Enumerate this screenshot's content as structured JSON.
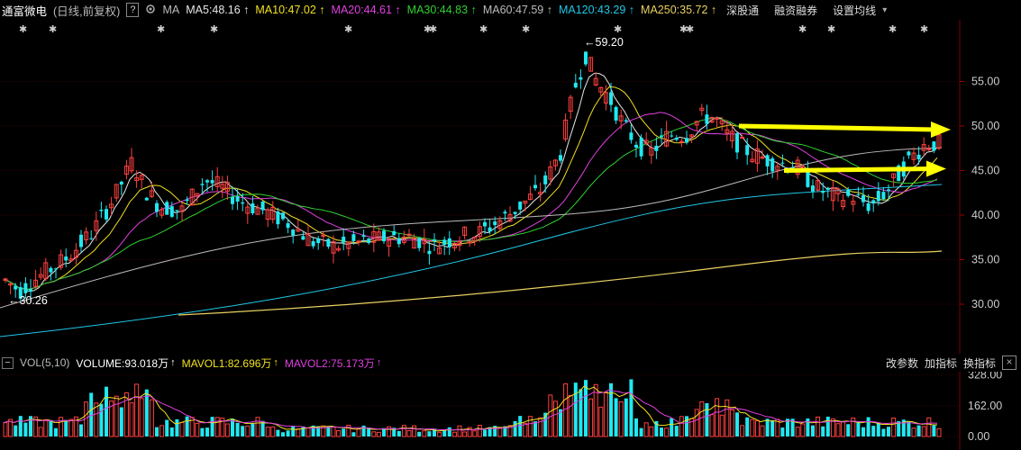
{
  "header": {
    "stock_name": "通富微电",
    "period_label": "(日线,前复权)",
    "help_glyph": "?",
    "ma_label": "MA",
    "ma_values": [
      {
        "label": "MA5:48.16",
        "color": "#e6e6e6"
      },
      {
        "label": "MA10:47.02",
        "color": "#f0e020"
      },
      {
        "label": "MA20:44.61",
        "color": "#e040e0"
      },
      {
        "label": "MA30:44.83",
        "color": "#30d030"
      },
      {
        "label": "MA60:47.59",
        "color": "#bbbbbb"
      },
      {
        "label": "MA120:43.29",
        "color": "#20c8e8"
      },
      {
        "label": "MA250:35.72",
        "color": "#e8d060"
      }
    ],
    "arrow_glyph": "↑",
    "buttons": {
      "sgt": "深股通",
      "rzrq": "融资融券",
      "set_ma": "设置均线"
    },
    "dropdown_glyph": "▾"
  },
  "price_axis": {
    "labels": [
      "55.00",
      "50.00",
      "45.00",
      "40.00",
      "35.00",
      "30.00"
    ],
    "high_label": "←59.20",
    "low_label": "←30.26"
  },
  "marker_glyph": "✱",
  "volume_header": {
    "minus_glyph": "−",
    "label": "VOL(5,10)",
    "volume": "VOLUME:93.018万",
    "mavol1": "MAVOL1:82.696万",
    "mavol2": "MAVOL2:75.173万",
    "arrow_glyph": "↑",
    "buttons": {
      "params": "改参数",
      "add": "加指标",
      "switch": "换指标"
    },
    "close_glyph": "×"
  },
  "volume_axis": {
    "labels": [
      "328.00",
      "162.00",
      "0.00"
    ]
  },
  "colors": {
    "up": "#ff4040",
    "down": "#20e8f0",
    "arrow": "#ffff00",
    "axis_text": "#cccccc"
  },
  "annotations": [
    {
      "name": "resistance-arrow",
      "from_price": 50.0,
      "to_price": 49.6
    },
    {
      "name": "support-arrow",
      "from_price": 45.0,
      "to_price": 45.2
    }
  ]
}
